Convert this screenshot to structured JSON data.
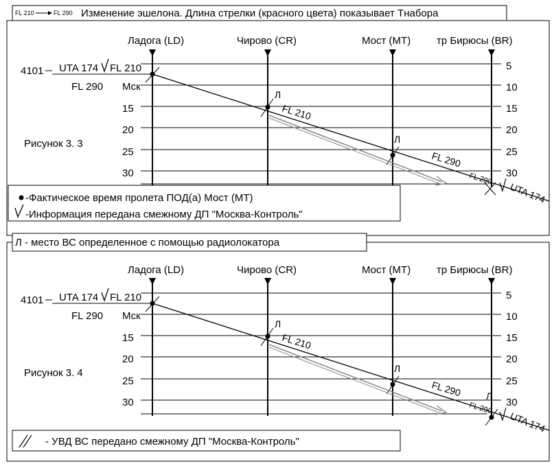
{
  "top": {
    "legend_from": "FL 210",
    "legend_to": "FL 290",
    "title": "Изменение эшелона. Длина стрелки (красного цвета) показывает Tнабора",
    "figure_label": "Рисунок 3. 3",
    "key_dot": "-Фактическое время  пролета ПОД(а) Мост (МТ)",
    "key_check": "-Информация передана смежному ДП \"Москва-Контроль\""
  },
  "bottom": {
    "title": "Л - место ВС определенное с помощью радиолокатора",
    "figure_label": "Рисунок 3. 4",
    "key_text": "- УВД  ВС  передано   смежному ДП \"Москва-Контроль\""
  },
  "points": {
    "ld": "Ладога (LD)",
    "cr": "Чирово (CR)",
    "mt": "Мост (MT)",
    "br": "тр Бирюсы (BR)"
  },
  "strip": {
    "flight_id": "4101",
    "callsign": "UTA 174",
    "fl_current": "FL 210",
    "fl_requested": "FL 290",
    "origin": "Мск",
    "callsign_end": "UTA 174",
    "fl_label_seg": "FL 210",
    "fl_label_mid": "FL 290",
    "fl_label_end": "FL 290",
    "radar_mark": "Л"
  },
  "ticks": {
    "left": [
      "15",
      "20",
      "25",
      "30"
    ],
    "right": [
      "5",
      "10",
      "15",
      "20",
      "25",
      "30"
    ]
  },
  "colors": {
    "grid": "#000000",
    "arrow": "#888888",
    "text": "#000000"
  }
}
